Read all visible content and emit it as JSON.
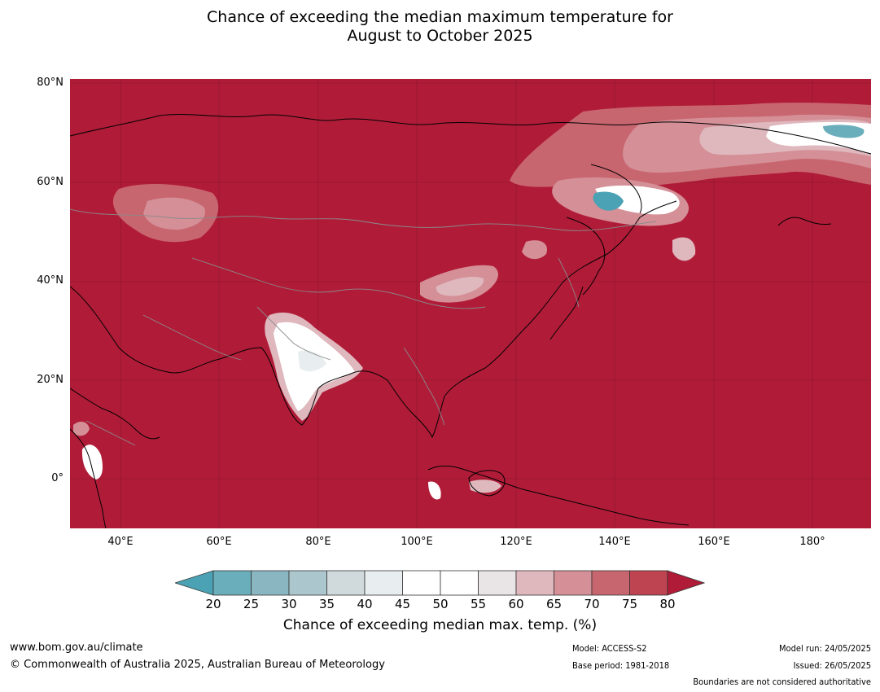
{
  "title_line1": "Chance of exceeding the median maximum temperature for",
  "title_line2": "August to October 2025",
  "lat_labels": [
    "80°N",
    "60°N",
    "40°N",
    "20°N",
    "0°"
  ],
  "lon_labels": [
    "40°E",
    "60°E",
    "80°E",
    "100°E",
    "120°E",
    "140°E",
    "160°E",
    "180°"
  ],
  "colorbar": {
    "ticks": [
      "20",
      "25",
      "30",
      "35",
      "40",
      "45",
      "50",
      "55",
      "60",
      "65",
      "70",
      "75",
      "80"
    ],
    "colors": [
      "#6aadbb",
      "#89b6c1",
      "#abc6cc",
      "#d0d9dc",
      "#e8eeef",
      "#ffffff",
      "#ffffff",
      "#e9e4e5",
      "#dfb8be",
      "#d48f97",
      "#c8666f",
      "#bd4450"
    ],
    "low_extend_color": "#4aa2b4",
    "high_extend_color": "#b01c38",
    "label": "Chance of exceeding median max. temp. (%)"
  },
  "map_colors": {
    "base": "#b01c38",
    "c75": "#bd4450",
    "c70": "#c8666f",
    "c65": "#d48f97",
    "c60": "#dfb8be",
    "c55": "#e9e4e5",
    "white": "#ffffff",
    "cool": "#4aa2b4"
  },
  "footer": {
    "url": "www.bom.gov.au/climate",
    "copyright": "© Commonwealth of Australia 2025, Australian Bureau of Meteorology",
    "model": "Model: ACCESS-S2",
    "base_period": "Base period: 1981-2018",
    "model_run": "Model run: 24/05/2025",
    "issued": "Issued: 26/05/2025",
    "disclaimer": "Boundaries are not considered authoritative"
  }
}
